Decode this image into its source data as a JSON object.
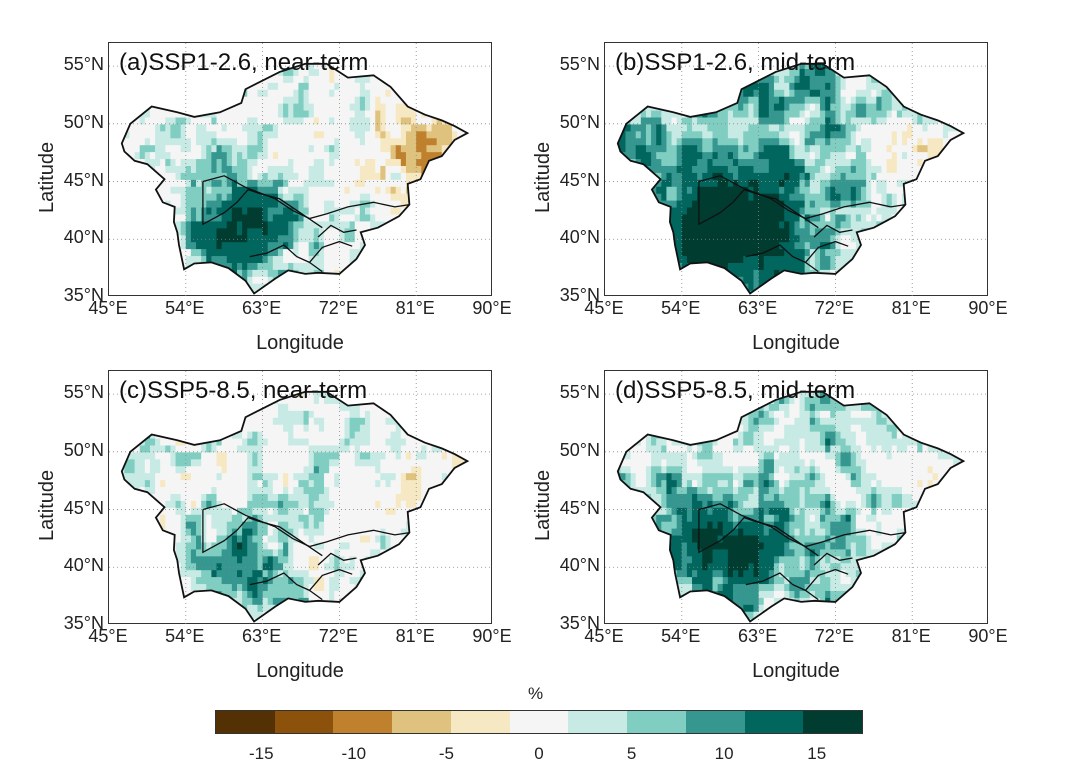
{
  "panels": [
    {
      "title": "(a)SSP1-2.6, near-term",
      "scenario": "SSP1-2.6",
      "period": "near-term",
      "pattern": "a"
    },
    {
      "title": "(b)SSP1-2.6, mid-term",
      "scenario": "SSP1-2.6",
      "period": "mid-term",
      "pattern": "b"
    },
    {
      "title": "(c)SSP5-8.5, near-term",
      "scenario": "SSP5-8.5",
      "period": "near-term",
      "pattern": "c"
    },
    {
      "title": "(d)SSP5-8.5, mid-term",
      "scenario": "SSP5-8.5",
      "period": "mid-term",
      "pattern": "d"
    }
  ],
  "axes": {
    "xlabel": "Longitude",
    "ylabel": "Latitude",
    "x_ticks": [
      "45°E",
      "54°E",
      "63°E",
      "72°E",
      "81°E",
      "90°E"
    ],
    "y_ticks": [
      "55°N",
      "50°N",
      "45°N",
      "40°N",
      "35°N"
    ],
    "x_range": [
      45,
      90
    ],
    "y_range": [
      35,
      57
    ]
  },
  "colorbar": {
    "unit": "%",
    "tick_labels": [
      "-15",
      "-10",
      "-5",
      "0",
      "5",
      "10",
      "15"
    ],
    "colors": [
      "#543005",
      "#8c510a",
      "#bf812d",
      "#dfc27d",
      "#f6e8c3",
      "#f5f5f5",
      "#c7eae5",
      "#80cdc1",
      "#35978f",
      "#01665e",
      "#003c30"
    ]
  }
}
